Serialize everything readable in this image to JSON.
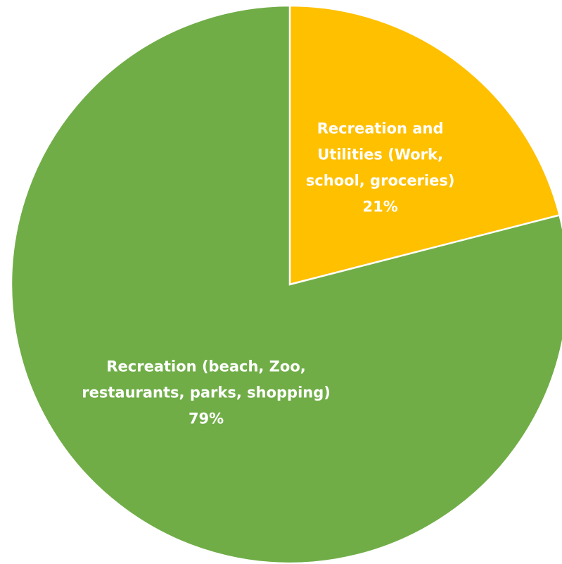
{
  "chart_data": {
    "type": "pie",
    "start_angle_deg": 0,
    "direction": "clockwise",
    "title": "",
    "legend": "none",
    "slices": [
      {
        "label_lines": [
          "Recreation and",
          "Utilities (Work,",
          "school, groceries)"
        ],
        "value": 21,
        "value_label": "21%",
        "color": "#FFC000"
      },
      {
        "label_lines": [
          "Recreation (beach, Zoo,",
          "restaurants, parks, shopping)"
        ],
        "value": 79,
        "value_label": "79%",
        "color": "#70AD47"
      }
    ],
    "slice_border_color": "#FFFFFF"
  }
}
